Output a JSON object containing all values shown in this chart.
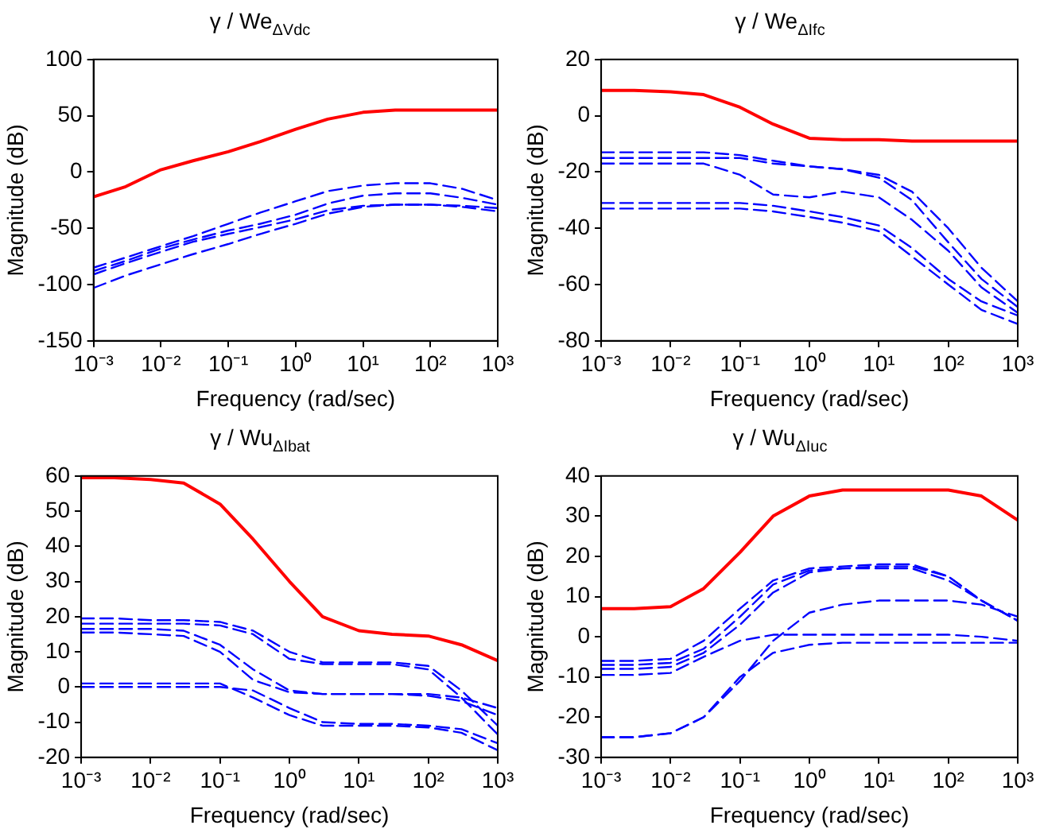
{
  "chart_data": [
    {
      "type": "line",
      "title": "γ / We$_{ΔVdc}$",
      "xlabel": "Frequency (rad/sec)",
      "ylabel": "Magnitude (dB)",
      "log": "x",
      "grid": false,
      "legend": false,
      "marker": "none",
      "x": [
        0.001,
        0.003,
        0.01,
        0.03,
        0.1,
        0.3,
        1,
        3,
        10,
        30,
        100,
        300,
        1000
      ],
      "xlim": [
        0.001,
        1000
      ],
      "xticks": [
        {
          "value": 0.001,
          "label": "10⁻³"
        },
        {
          "value": 0.01,
          "label": "10⁻²"
        },
        {
          "value": 0.1,
          "label": "10⁻¹"
        },
        {
          "value": 1,
          "label": "10⁰"
        },
        {
          "value": 10,
          "label": "10¹"
        },
        {
          "value": 100,
          "label": "10²"
        },
        {
          "value": 1000,
          "label": "10³"
        }
      ],
      "ylim": [
        -150,
        100
      ],
      "yticks": [
        -150,
        -100,
        -50,
        0,
        50,
        100
      ],
      "series": [
        {
          "color": "#ff0000",
          "line_style": "solid",
          "values": [
            -22,
            -13,
            2,
            10,
            18,
            27,
            38,
            47,
            53,
            55,
            55,
            55,
            55
          ]
        },
        {
          "color": "#0000ff",
          "line_style": "dashed",
          "values": [
            -85,
            -76,
            -66,
            -57,
            -46,
            -36,
            -26,
            -17,
            -12,
            -10,
            -10,
            -15,
            -25
          ]
        },
        {
          "color": "#0000ff",
          "line_style": "dashed",
          "values": [
            -88,
            -79,
            -68,
            -60,
            -52,
            -46,
            -38,
            -28,
            -21,
            -19,
            -19,
            -23,
            -29
          ]
        },
        {
          "color": "#0000ff",
          "line_style": "dashed",
          "values": [
            -91,
            -81,
            -71,
            -62,
            -55,
            -49,
            -42,
            -34,
            -30,
            -29,
            -29,
            -30,
            -32
          ]
        },
        {
          "color": "#0000ff",
          "line_style": "dashed",
          "values": [
            -103,
            -92,
            -82,
            -73,
            -64,
            -55,
            -46,
            -37,
            -31,
            -29,
            -29,
            -31,
            -35
          ]
        }
      ]
    },
    {
      "type": "line",
      "title": "γ / We$_{ΔIfc}$",
      "xlabel": "Frequency (rad/sec)",
      "ylabel": "Magnitude (dB)",
      "log": "x",
      "grid": false,
      "legend": false,
      "marker": "none",
      "x": [
        0.001,
        0.003,
        0.01,
        0.03,
        0.1,
        0.3,
        1,
        3,
        10,
        30,
        100,
        300,
        1000
      ],
      "xlim": [
        0.001,
        1000
      ],
      "xticks": [
        {
          "value": 0.001,
          "label": "10⁻³"
        },
        {
          "value": 0.01,
          "label": "10⁻²"
        },
        {
          "value": 0.1,
          "label": "10⁻¹"
        },
        {
          "value": 1,
          "label": "10⁰"
        },
        {
          "value": 10,
          "label": "10¹"
        },
        {
          "value": 100,
          "label": "10²"
        },
        {
          "value": 1000,
          "label": "10³"
        }
      ],
      "ylim": [
        -80,
        20
      ],
      "yticks": [
        -80,
        -60,
        -40,
        -20,
        0,
        20
      ],
      "series": [
        {
          "color": "#ff0000",
          "line_style": "solid",
          "values": [
            9,
            9,
            8.5,
            7.5,
            3,
            -3,
            -8,
            -8.5,
            -8.5,
            -9,
            -9,
            -9,
            -9
          ]
        },
        {
          "color": "#0000ff",
          "line_style": "dashed",
          "values": [
            -13,
            -13,
            -13,
            -13,
            -14,
            -16,
            -18,
            -19,
            -21,
            -27,
            -40,
            -54,
            -66
          ]
        },
        {
          "color": "#0000ff",
          "line_style": "dashed",
          "values": [
            -15,
            -15,
            -15,
            -15,
            -15,
            -17,
            -18,
            -19,
            -22,
            -30,
            -45,
            -58,
            -68
          ]
        },
        {
          "color": "#0000ff",
          "line_style": "dashed",
          "values": [
            -17,
            -17,
            -17,
            -17,
            -21,
            -28,
            -29,
            -27,
            -29,
            -37,
            -48,
            -61,
            -70
          ]
        },
        {
          "color": "#0000ff",
          "line_style": "dashed",
          "values": [
            -31,
            -31,
            -31,
            -31,
            -31,
            -32,
            -34,
            -36,
            -39,
            -47,
            -58,
            -66,
            -71
          ]
        },
        {
          "color": "#0000ff",
          "line_style": "dashed",
          "values": [
            -33,
            -33,
            -33,
            -33,
            -33,
            -34,
            -36,
            -38,
            -41,
            -50,
            -60,
            -69,
            -74
          ]
        }
      ]
    },
    {
      "type": "line",
      "title": "γ / Wu$_{ΔIbat}$",
      "xlabel": "Frequency (rad/sec)",
      "ylabel": "Magnitude (dB)",
      "log": "x",
      "grid": false,
      "legend": false,
      "marker": "none",
      "x": [
        0.001,
        0.003,
        0.01,
        0.03,
        0.1,
        0.3,
        1,
        3,
        10,
        30,
        100,
        300,
        1000
      ],
      "xlim": [
        0.001,
        1000
      ],
      "xticks": [
        {
          "value": 0.001,
          "label": "10⁻³"
        },
        {
          "value": 0.01,
          "label": "10⁻²"
        },
        {
          "value": 0.1,
          "label": "10⁻¹"
        },
        {
          "value": 1,
          "label": "10⁰"
        },
        {
          "value": 10,
          "label": "10¹"
        },
        {
          "value": 100,
          "label": "10²"
        },
        {
          "value": 1000,
          "label": "10³"
        }
      ],
      "ylim": [
        -20,
        60
      ],
      "yticks": [
        -20,
        -10,
        0,
        10,
        20,
        30,
        40,
        50,
        60
      ],
      "series": [
        {
          "color": "#ff0000",
          "line_style": "solid",
          "values": [
            59.5,
            59.5,
            59,
            58,
            52,
            42,
            30,
            20,
            16,
            15,
            14.5,
            12,
            7.5
          ]
        },
        {
          "color": "#0000ff",
          "line_style": "dashed",
          "values": [
            19.5,
            19.5,
            19,
            19,
            18.5,
            16,
            10,
            7,
            7,
            7,
            6,
            -1,
            -11
          ]
        },
        {
          "color": "#0000ff",
          "line_style": "dashed",
          "values": [
            18,
            18,
            18,
            18,
            17.5,
            15,
            8,
            6.5,
            6.5,
            6.5,
            5,
            -3,
            -13.5
          ]
        },
        {
          "color": "#0000ff",
          "line_style": "dashed",
          "values": [
            16.5,
            16.5,
            16.5,
            16,
            12,
            5,
            -1,
            -2,
            -2,
            -2,
            -2,
            -3,
            -6
          ]
        },
        {
          "color": "#0000ff",
          "line_style": "dashed",
          "values": [
            15.5,
            15.5,
            15,
            14.5,
            10,
            2,
            -1.5,
            -2,
            -2,
            -2,
            -2.5,
            -4,
            -8
          ]
        },
        {
          "color": "#0000ff",
          "line_style": "dashed",
          "values": [
            1,
            1,
            1,
            1,
            1,
            -3,
            -8,
            -11,
            -11,
            -11,
            -11.5,
            -13,
            -18
          ]
        },
        {
          "color": "#0000ff",
          "line_style": "dashed",
          "values": [
            0,
            0,
            0,
            0,
            0,
            -1,
            -6,
            -10,
            -10.5,
            -10.5,
            -11,
            -12,
            -16
          ]
        }
      ]
    },
    {
      "type": "line",
      "title": "γ / Wu$_{ΔIuc}$",
      "xlabel": "Frequency (rad/sec)",
      "ylabel": "Magnitude (dB)",
      "log": "x",
      "grid": false,
      "legend": false,
      "marker": "none",
      "x": [
        0.001,
        0.003,
        0.01,
        0.03,
        0.1,
        0.3,
        1,
        3,
        10,
        30,
        100,
        300,
        1000
      ],
      "xlim": [
        0.001,
        1000
      ],
      "xticks": [
        {
          "value": 0.001,
          "label": "10⁻³"
        },
        {
          "value": 0.01,
          "label": "10⁻²"
        },
        {
          "value": 0.1,
          "label": "10⁻¹"
        },
        {
          "value": 1,
          "label": "10⁰"
        },
        {
          "value": 10,
          "label": "10¹"
        },
        {
          "value": 100,
          "label": "10²"
        },
        {
          "value": 1000,
          "label": "10³"
        }
      ],
      "ylim": [
        -30,
        40
      ],
      "yticks": [
        -30,
        -20,
        -10,
        0,
        10,
        20,
        30,
        40
      ],
      "series": [
        {
          "color": "#ff0000",
          "line_style": "solid",
          "values": [
            7,
            7,
            7.5,
            12,
            21,
            30,
            35,
            36.5,
            36.5,
            36.5,
            36.5,
            35,
            29
          ]
        },
        {
          "color": "#0000ff",
          "line_style": "dashed",
          "values": [
            -6,
            -6,
            -5.5,
            -1,
            7,
            14,
            17,
            17.5,
            18,
            18,
            15,
            9,
            4
          ]
        },
        {
          "color": "#0000ff",
          "line_style": "dashed",
          "values": [
            -7,
            -7,
            -6.5,
            -3,
            5,
            13,
            16.5,
            17,
            17.5,
            17.5,
            15,
            9,
            4
          ]
        },
        {
          "color": "#0000ff",
          "line_style": "dashed",
          "values": [
            -8,
            -8,
            -7.5,
            -4,
            3,
            11,
            16,
            17,
            17,
            17,
            14,
            9,
            4
          ]
        },
        {
          "color": "#0000ff",
          "line_style": "dashed",
          "values": [
            -9.5,
            -9.5,
            -9,
            -5,
            -1,
            0.5,
            0.5,
            0.5,
            0.5,
            0.5,
            0.5,
            0,
            -1
          ]
        },
        {
          "color": "#0000ff",
          "line_style": "dashed",
          "values": [
            -25,
            -25,
            -24,
            -20,
            -10,
            -4,
            -2,
            -1.5,
            -1.5,
            -1.5,
            -1.5,
            -1.5,
            -1.5
          ]
        },
        {
          "color": "#0000ff",
          "line_style": "dashed",
          "values": [
            -25,
            -25,
            -24,
            -20,
            -11,
            -1,
            6,
            8,
            9,
            9,
            9,
            8,
            5
          ]
        }
      ]
    }
  ]
}
